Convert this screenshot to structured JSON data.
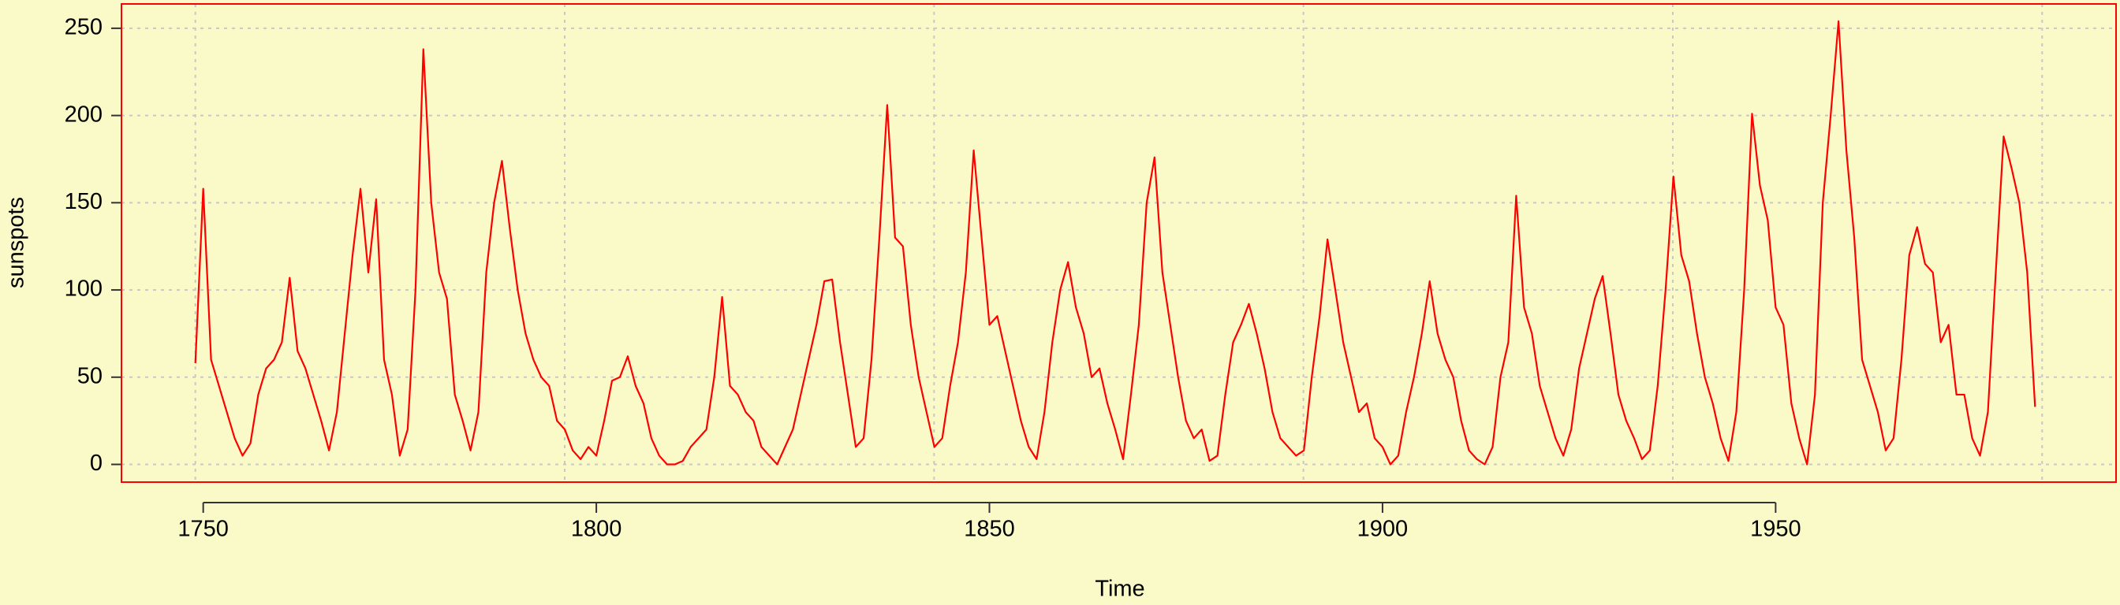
{
  "chart_data": {
    "type": "line",
    "xlabel": "Time",
    "ylabel": "sunspots",
    "color": "#ff0000",
    "background": "#fafac8",
    "xlim": [
      1739.6,
      1993.3
    ],
    "ylim": [
      -10.15,
      263.95
    ],
    "xticks": [
      1750,
      1800,
      1850,
      1900,
      1950
    ],
    "yticks": [
      0,
      50,
      100,
      150,
      200,
      250
    ],
    "xgrid": [
      1749,
      1795.98,
      1842.96,
      1889.94,
      1936.92,
      1983.9
    ],
    "grid": true,
    "x": [
      1749,
      1750,
      1751,
      1752,
      1753,
      1754,
      1755,
      1756,
      1757,
      1758,
      1759,
      1760,
      1761,
      1762,
      1763,
      1764,
      1765,
      1766,
      1767,
      1768,
      1769,
      1770,
      1771,
      1772,
      1773,
      1774,
      1775,
      1776,
      1777,
      1778,
      1779,
      1780,
      1781,
      1782,
      1783,
      1784,
      1785,
      1786,
      1787,
      1788,
      1789,
      1790,
      1791,
      1792,
      1793,
      1794,
      1795,
      1796,
      1797,
      1798,
      1799,
      1800,
      1801,
      1802,
      1803,
      1804,
      1805,
      1806,
      1807,
      1808,
      1809,
      1810,
      1811,
      1812,
      1813,
      1814,
      1815,
      1816,
      1817,
      1818,
      1819,
      1820,
      1821,
      1822,
      1823,
      1824,
      1825,
      1826,
      1827,
      1828,
      1829,
      1830,
      1831,
      1832,
      1833,
      1834,
      1835,
      1836,
      1837,
      1838,
      1839,
      1840,
      1841,
      1842,
      1843,
      1844,
      1845,
      1846,
      1847,
      1848,
      1849,
      1850,
      1851,
      1852,
      1853,
      1854,
      1855,
      1856,
      1857,
      1858,
      1859,
      1860,
      1861,
      1862,
      1863,
      1864,
      1865,
      1866,
      1867,
      1868,
      1869,
      1870,
      1871,
      1872,
      1873,
      1874,
      1875,
      1876,
      1877,
      1878,
      1879,
      1880,
      1881,
      1882,
      1883,
      1884,
      1885,
      1886,
      1887,
      1888,
      1889,
      1890,
      1891,
      1892,
      1893,
      1894,
      1895,
      1896,
      1897,
      1898,
      1899,
      1900,
      1901,
      1902,
      1903,
      1904,
      1905,
      1906,
      1907,
      1908,
      1909,
      1910,
      1911,
      1912,
      1913,
      1914,
      1915,
      1916,
      1917,
      1918,
      1919,
      1920,
      1921,
      1922,
      1923,
      1924,
      1925,
      1926,
      1927,
      1928,
      1929,
      1930,
      1931,
      1932,
      1933,
      1934,
      1935,
      1936,
      1937,
      1938,
      1939,
      1940,
      1941,
      1942,
      1943,
      1944,
      1945,
      1946,
      1947,
      1948,
      1949,
      1950,
      1951,
      1952,
      1953,
      1954,
      1955,
      1956,
      1957,
      1958,
      1959,
      1960,
      1961,
      1962,
      1963,
      1964,
      1965,
      1966,
      1967,
      1968,
      1969,
      1970,
      1971,
      1972,
      1973,
      1974,
      1975,
      1976,
      1977,
      1978,
      1979,
      1980,
      1981,
      1982,
      1983
    ],
    "values": [
      58,
      158,
      60,
      45,
      30,
      15,
      5,
      12,
      40,
      55,
      60,
      70,
      107,
      65,
      55,
      40,
      25,
      8,
      30,
      75,
      120,
      158,
      110,
      152,
      60,
      40,
      5,
      20,
      100,
      238,
      150,
      110,
      95,
      40,
      25,
      8,
      30,
      110,
      150,
      174,
      135,
      100,
      75,
      60,
      50,
      45,
      25,
      20,
      8,
      3,
      10,
      5,
      25,
      48,
      50,
      62,
      45,
      35,
      15,
      5,
      0,
      0,
      2,
      10,
      15,
      20,
      50,
      96,
      45,
      40,
      30,
      25,
      10,
      5,
      0,
      10,
      20,
      40,
      60,
      80,
      105,
      106,
      70,
      40,
      10,
      15,
      60,
      130,
      206,
      130,
      125,
      80,
      50,
      30,
      10,
      15,
      45,
      70,
      110,
      180,
      130,
      80,
      85,
      65,
      45,
      25,
      10,
      3,
      30,
      70,
      100,
      116,
      90,
      75,
      50,
      55,
      35,
      20,
      3,
      40,
      80,
      150,
      176,
      110,
      80,
      50,
      25,
      15,
      20,
      2,
      5,
      40,
      70,
      80,
      92,
      75,
      55,
      30,
      15,
      10,
      5,
      8,
      50,
      85,
      129,
      100,
      70,
      50,
      30,
      35,
      15,
      10,
      0,
      5,
      30,
      50,
      75,
      105,
      75,
      60,
      50,
      25,
      8,
      3,
      0,
      10,
      50,
      70,
      154,
      90,
      75,
      45,
      30,
      15,
      5,
      20,
      55,
      75,
      95,
      108,
      75,
      40,
      25,
      15,
      3,
      8,
      45,
      100,
      165,
      120,
      105,
      75,
      50,
      35,
      15,
      2,
      30,
      100,
      201,
      160,
      140,
      90,
      80,
      35,
      15,
      0,
      40,
      150,
      200,
      254,
      180,
      130,
      60,
      45,
      30,
      8,
      15,
      60,
      120,
      136,
      115,
      110,
      70,
      80,
      40,
      40,
      15,
      5,
      30,
      110,
      188,
      170,
      150,
      110,
      33
    ]
  }
}
